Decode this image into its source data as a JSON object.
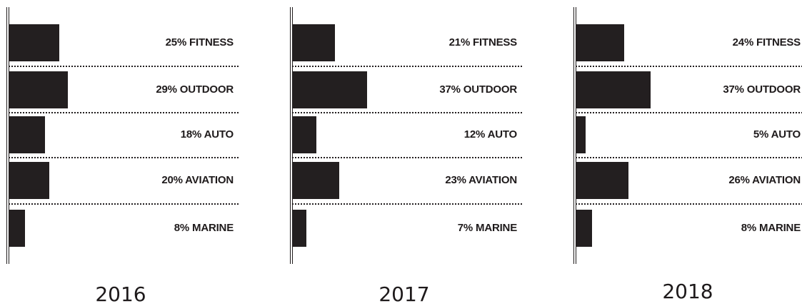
{
  "chart_data": [
    {
      "type": "bar",
      "orientation": "horizontal",
      "year": "2016",
      "categories": [
        "FITNESS",
        "OUTDOOR",
        "AUTO",
        "AVIATION",
        "MARINE"
      ],
      "values": [
        25,
        29,
        18,
        20,
        8
      ],
      "labels": [
        "25% FITNESS",
        "29% OUTDOOR",
        "18% AUTO",
        "20% AVIATION",
        "8% MARINE"
      ],
      "unit": "%"
    },
    {
      "type": "bar",
      "orientation": "horizontal",
      "year": "2017",
      "categories": [
        "FITNESS",
        "OUTDOOR",
        "AUTO",
        "AVIATION",
        "MARINE"
      ],
      "values": [
        21,
        37,
        12,
        23,
        7
      ],
      "labels": [
        "21% FITNESS",
        "37% OUTDOOR",
        "12% AUTO",
        "23% AVIATION",
        "7% MARINE"
      ],
      "unit": "%"
    },
    {
      "type": "bar",
      "orientation": "horizontal",
      "year": "2018",
      "categories": [
        "FITNESS",
        "OUTDOOR",
        "AUTO",
        "AVIATION",
        "MARINE"
      ],
      "values": [
        24,
        37,
        5,
        26,
        8
      ],
      "labels": [
        "24% FITNESS",
        "37% OUTDOOR",
        "5% AUTO",
        "26% AVIATION",
        "8% MARINE"
      ],
      "unit": "%"
    }
  ],
  "colors": {
    "bar": "#231f20",
    "text": "#1e1a1b",
    "background": "#ffffff"
  }
}
